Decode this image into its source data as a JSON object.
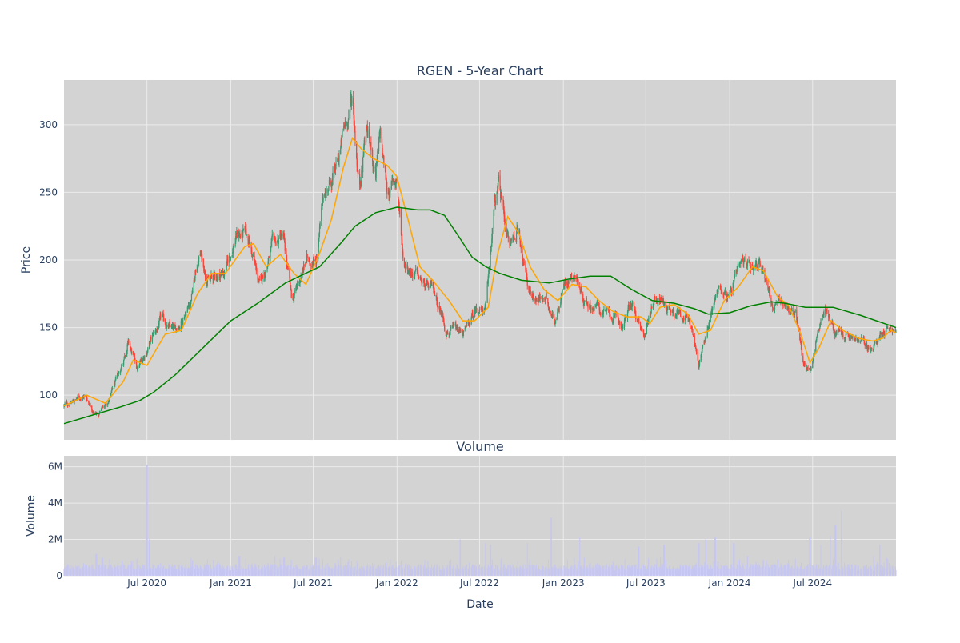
{
  "colors": {
    "plot_bg": "#d3d3d3",
    "grid": "#ebebeb",
    "increasing": "#3d9970",
    "decreasing": "#ff4136",
    "sma_short": "#ffa500",
    "sma_long": "#008000",
    "volume_bar": "#c6c6f2",
    "text": "#2a3f5f"
  },
  "chart_data": [
    {
      "type": "candlestick",
      "title": "RGEN - 5-Year Chart",
      "xlabel": "",
      "ylabel": "Price",
      "x_range": [
        "2020-01-01",
        "2024-12-31"
      ],
      "ylim": [
        67,
        333
      ],
      "yticks": [
        100,
        150,
        200,
        250,
        300
      ],
      "grid": true,
      "legend": "none",
      "price_anchors": [
        [
          "2020-01-01",
          92
        ],
        [
          "2020-02-15",
          100
        ],
        [
          "2020-03-15",
          85
        ],
        [
          "2020-04-10",
          98
        ],
        [
          "2020-05-01",
          115
        ],
        [
          "2020-05-20",
          140
        ],
        [
          "2020-06-10",
          118
        ],
        [
          "2020-07-10",
          140
        ],
        [
          "2020-08-01",
          155
        ],
        [
          "2020-09-01",
          146
        ],
        [
          "2020-10-05",
          172
        ],
        [
          "2020-10-25",
          205
        ],
        [
          "2020-11-15",
          185
        ],
        [
          "2020-12-20",
          192
        ],
        [
          "2021-01-15",
          220
        ],
        [
          "2021-02-10",
          215
        ],
        [
          "2021-03-05",
          180
        ],
        [
          "2021-04-01",
          208
        ],
        [
          "2021-04-25",
          218
        ],
        [
          "2021-05-15",
          168
        ],
        [
          "2021-06-15",
          198
        ],
        [
          "2021-07-10",
          205
        ],
        [
          "2021-07-25",
          250
        ],
        [
          "2021-08-20",
          265
        ],
        [
          "2021-09-10",
          300
        ],
        [
          "2021-09-25",
          320
        ],
        [
          "2021-10-10",
          255
        ],
        [
          "2021-10-25",
          300
        ],
        [
          "2021-11-15",
          265
        ],
        [
          "2021-11-25",
          290
        ],
        [
          "2021-12-10",
          250
        ],
        [
          "2021-12-31",
          260
        ],
        [
          "2022-01-15",
          200
        ],
        [
          "2022-02-10",
          190
        ],
        [
          "2022-03-01",
          180
        ],
        [
          "2022-03-25",
          175
        ],
        [
          "2022-04-20",
          150
        ],
        [
          "2022-05-15",
          145
        ],
        [
          "2022-06-05",
          148
        ],
        [
          "2022-06-25",
          165
        ],
        [
          "2022-07-15",
          163
        ],
        [
          "2022-08-01",
          235
        ],
        [
          "2022-08-12",
          255
        ],
        [
          "2022-09-05",
          210
        ],
        [
          "2022-09-25",
          225
        ],
        [
          "2022-10-15",
          180
        ],
        [
          "2022-11-05",
          172
        ],
        [
          "2022-11-25",
          168
        ],
        [
          "2022-12-15",
          158
        ],
        [
          "2023-01-05",
          185
        ],
        [
          "2023-01-25",
          192
        ],
        [
          "2023-02-15",
          172
        ],
        [
          "2023-03-15",
          165
        ],
        [
          "2023-04-15",
          158
        ],
        [
          "2023-05-10",
          152
        ],
        [
          "2023-06-01",
          168
        ],
        [
          "2023-06-25",
          140
        ],
        [
          "2023-07-20",
          175
        ],
        [
          "2023-08-20",
          165
        ],
        [
          "2023-09-20",
          162
        ],
        [
          "2023-10-10",
          150
        ],
        [
          "2023-10-25",
          120
        ],
        [
          "2023-11-15",
          155
        ],
        [
          "2023-12-10",
          182
        ],
        [
          "2023-12-31",
          172
        ],
        [
          "2024-01-25",
          192
        ],
        [
          "2024-02-15",
          200
        ],
        [
          "2024-03-15",
          195
        ],
        [
          "2024-04-05",
          165
        ],
        [
          "2024-05-01",
          168
        ],
        [
          "2024-05-25",
          160
        ],
        [
          "2024-06-10",
          125
        ],
        [
          "2024-06-25",
          118
        ],
        [
          "2024-07-20",
          158
        ],
        [
          "2024-08-01",
          165
        ],
        [
          "2024-08-20",
          145
        ],
        [
          "2024-09-20",
          142
        ],
        [
          "2024-10-20",
          138
        ],
        [
          "2024-11-10",
          132
        ],
        [
          "2024-11-25",
          145
        ],
        [
          "2024-12-15",
          152
        ],
        [
          "2024-12-31",
          145
        ]
      ],
      "sma_short": [
        [
          "2020-01-01",
          92
        ],
        [
          "2020-02-20",
          100
        ],
        [
          "2020-04-01",
          94
        ],
        [
          "2020-05-10",
          110
        ],
        [
          "2020-06-01",
          126
        ],
        [
          "2020-07-01",
          122
        ],
        [
          "2020-08-10",
          145
        ],
        [
          "2020-09-15",
          148
        ],
        [
          "2020-10-20",
          175
        ],
        [
          "2020-11-20",
          190
        ],
        [
          "2020-12-20",
          190
        ],
        [
          "2021-02-01",
          210
        ],
        [
          "2021-02-20",
          212
        ],
        [
          "2021-03-20",
          195
        ],
        [
          "2021-04-20",
          204
        ],
        [
          "2021-05-20",
          190
        ],
        [
          "2021-06-15",
          182
        ],
        [
          "2021-07-15",
          205
        ],
        [
          "2021-08-10",
          230
        ],
        [
          "2021-09-05",
          268
        ],
        [
          "2021-09-25",
          290
        ],
        [
          "2021-10-15",
          282
        ],
        [
          "2021-11-10",
          275
        ],
        [
          "2021-12-10",
          270
        ],
        [
          "2021-12-31",
          262
        ],
        [
          "2022-01-25",
          230
        ],
        [
          "2022-02-20",
          195
        ],
        [
          "2022-03-20",
          185
        ],
        [
          "2022-04-25",
          170
        ],
        [
          "2022-05-25",
          155
        ],
        [
          "2022-06-20",
          155
        ],
        [
          "2022-07-20",
          165
        ],
        [
          "2022-08-10",
          205
        ],
        [
          "2022-09-01",
          232
        ],
        [
          "2022-09-25",
          220
        ],
        [
          "2022-10-20",
          195
        ],
        [
          "2022-11-20",
          178
        ],
        [
          "2022-12-20",
          170
        ],
        [
          "2023-01-20",
          182
        ],
        [
          "2023-02-20",
          180
        ],
        [
          "2023-03-20",
          170
        ],
        [
          "2023-04-20",
          162
        ],
        [
          "2023-05-20",
          158
        ],
        [
          "2023-06-20",
          158
        ],
        [
          "2023-07-10",
          153
        ],
        [
          "2023-08-01",
          165
        ],
        [
          "2023-09-01",
          167
        ],
        [
          "2023-10-01",
          160
        ],
        [
          "2023-10-25",
          145
        ],
        [
          "2023-11-20",
          148
        ],
        [
          "2023-12-20",
          170
        ],
        [
          "2024-01-20",
          180
        ],
        [
          "2024-02-20",
          195
        ],
        [
          "2024-03-15",
          192
        ],
        [
          "2024-04-15",
          173
        ],
        [
          "2024-05-10",
          166
        ],
        [
          "2024-06-05",
          145
        ],
        [
          "2024-06-25",
          124
        ],
        [
          "2024-07-15",
          135
        ],
        [
          "2024-08-10",
          155
        ],
        [
          "2024-09-05",
          148
        ],
        [
          "2024-10-10",
          142
        ],
        [
          "2024-11-10",
          140
        ],
        [
          "2024-12-01",
          142
        ],
        [
          "2024-12-20",
          148
        ],
        [
          "2024-12-31",
          146
        ]
      ],
      "sma_long": [
        [
          "2020-01-01",
          79
        ],
        [
          "2020-03-01",
          85
        ],
        [
          "2020-05-01",
          91
        ],
        [
          "2020-06-15",
          96
        ],
        [
          "2020-07-15",
          102
        ],
        [
          "2020-09-01",
          115
        ],
        [
          "2020-11-01",
          135
        ],
        [
          "2021-01-01",
          155
        ],
        [
          "2021-03-01",
          168
        ],
        [
          "2021-05-01",
          183
        ],
        [
          "2021-06-01",
          188
        ],
        [
          "2021-07-15",
          195
        ],
        [
          "2021-09-01",
          213
        ],
        [
          "2021-10-01",
          225
        ],
        [
          "2021-11-15",
          235
        ],
        [
          "2022-01-01",
          239
        ],
        [
          "2022-02-15",
          237
        ],
        [
          "2022-03-15",
          237
        ],
        [
          "2022-04-15",
          233
        ],
        [
          "2022-05-15",
          218
        ],
        [
          "2022-06-15",
          202
        ],
        [
          "2022-07-15",
          195
        ],
        [
          "2022-08-15",
          190
        ],
        [
          "2022-10-01",
          185
        ],
        [
          "2022-12-01",
          183
        ],
        [
          "2023-01-15",
          186
        ],
        [
          "2023-03-01",
          188
        ],
        [
          "2023-04-15",
          188
        ],
        [
          "2023-06-01",
          178
        ],
        [
          "2023-07-15",
          170
        ],
        [
          "2023-09-01",
          168
        ],
        [
          "2023-10-15",
          164
        ],
        [
          "2023-11-15",
          160
        ],
        [
          "2024-01-01",
          161
        ],
        [
          "2024-02-15",
          166
        ],
        [
          "2024-04-01",
          169
        ],
        [
          "2024-05-01",
          168
        ],
        [
          "2024-06-15",
          165
        ],
        [
          "2024-08-15",
          165
        ],
        [
          "2024-10-15",
          159
        ],
        [
          "2024-12-31",
          150
        ]
      ]
    },
    {
      "type": "bar",
      "title": "Volume",
      "xlabel": "Date",
      "ylabel": "Volume",
      "x_range": [
        "2020-01-01",
        "2024-12-31"
      ],
      "ylim": [
        0,
        6600000
      ],
      "yticks": [
        {
          "value": 0,
          "label": "0"
        },
        {
          "value": 2000000,
          "label": "2M"
        },
        {
          "value": 4000000,
          "label": "4M"
        },
        {
          "value": 6000000,
          "label": "6M"
        }
      ],
      "xticks": [
        {
          "date": "2020-07-01",
          "label": "Jul 2020"
        },
        {
          "date": "2021-01-01",
          "label": "Jan 2021"
        },
        {
          "date": "2021-07-01",
          "label": "Jul 2021"
        },
        {
          "date": "2022-01-01",
          "label": "Jan 2022"
        },
        {
          "date": "2022-07-01",
          "label": "Jul 2022"
        },
        {
          "date": "2023-01-01",
          "label": "Jan 2023"
        },
        {
          "date": "2023-07-01",
          "label": "Jul 2023"
        },
        {
          "date": "2024-01-01",
          "label": "Jan 2024"
        },
        {
          "date": "2024-07-01",
          "label": "Jul 2024"
        }
      ],
      "grid": true,
      "spikes": [
        [
          "2020-03-12",
          1200000
        ],
        [
          "2020-03-25",
          1000000
        ],
        [
          "2020-07-01",
          6100000
        ],
        [
          "2020-07-05",
          2000000
        ],
        [
          "2021-01-20",
          1100000
        ],
        [
          "2021-07-05",
          1000000
        ],
        [
          "2022-05-20",
          2000000
        ],
        [
          "2022-07-15",
          1800000
        ],
        [
          "2022-07-25",
          1700000
        ],
        [
          "2022-10-15",
          1800000
        ],
        [
          "2022-12-05",
          3200000
        ],
        [
          "2023-02-05",
          2100000
        ],
        [
          "2023-06-15",
          1600000
        ],
        [
          "2023-08-10",
          1700000
        ],
        [
          "2023-10-25",
          1800000
        ],
        [
          "2023-11-10",
          2000000
        ],
        [
          "2023-11-30",
          2100000
        ],
        [
          "2024-01-10",
          1800000
        ],
        [
          "2024-02-10",
          1100000
        ],
        [
          "2024-04-15",
          900000
        ],
        [
          "2024-06-25",
          2100000
        ],
        [
          "2024-07-20",
          1700000
        ],
        [
          "2024-08-10",
          2200000
        ],
        [
          "2024-08-20",
          2800000
        ],
        [
          "2024-09-01",
          3600000
        ],
        [
          "2024-11-25",
          1700000
        ]
      ]
    }
  ]
}
